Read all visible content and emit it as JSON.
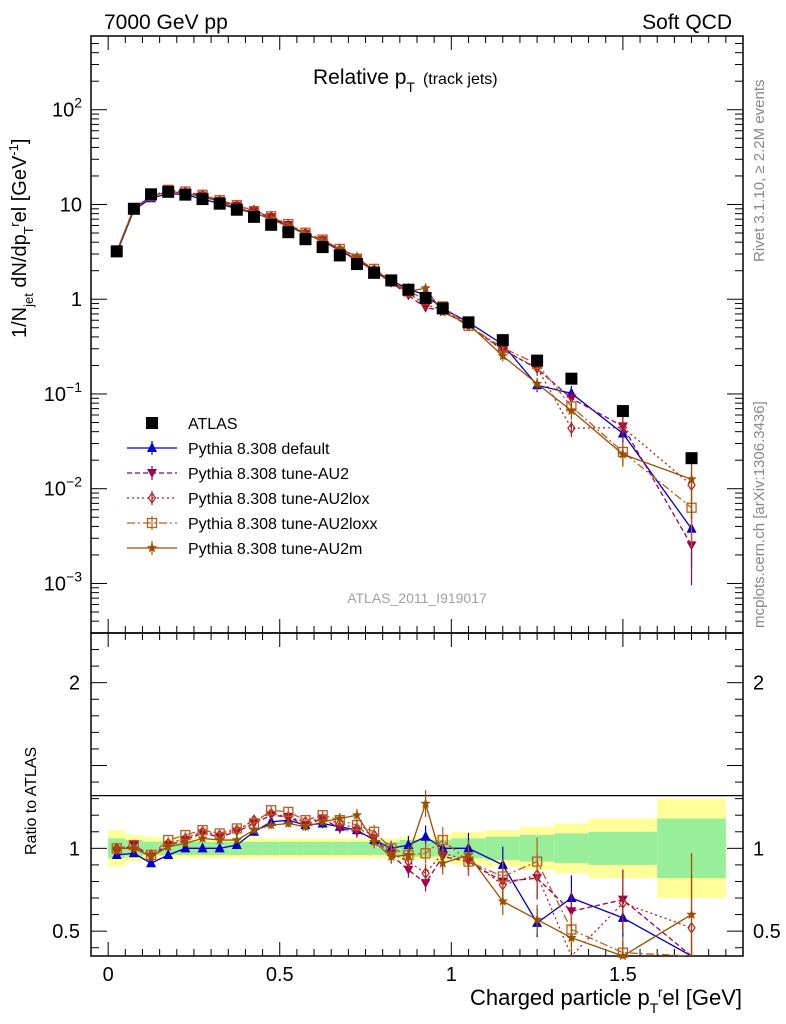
{
  "header": {
    "left": "7000 GeV pp",
    "right": "Soft QCD"
  },
  "side_text": {
    "rivet": "Rivet 3.1.10, ≥ 2.2M events",
    "mcplots": "mcplots.cern.ch [arXiv:1306.3436]"
  },
  "chart_data": {
    "type": "scatter",
    "title": "Relative p",
    "title_sub": "T",
    "title_suffix": "(track jets)",
    "watermark": "ATLAS_2011_I919017",
    "ylabel_main": "1/N_jet dN/dp_T^rel [GeV^-1]",
    "ylabel_ratio": "Ratio to ATLAS",
    "xlabel": "Charged particle p_T^rel [GeV]",
    "xlabel_text": "Charged particle p",
    "xlabel_suffix": "el [GeV]",
    "xlim": [
      -0.05,
      1.85
    ],
    "ylim_main": [
      0.0003,
      600
    ],
    "ylim_ratio": [
      0.35,
      2.3
    ],
    "yscale_main": "log",
    "legend_position": "bottom-left",
    "x_ticks": [
      {
        "v": 0,
        "label": "0"
      },
      {
        "v": 0.5,
        "label": "0.5"
      },
      {
        "v": 1,
        "label": "1"
      },
      {
        "v": 1.5,
        "label": "1.5"
      }
    ],
    "y_ticks_ratio": [
      {
        "v": 0.5,
        "label": "0.5"
      },
      {
        "v": 1,
        "label": "1"
      },
      {
        "v": 2,
        "label": "2"
      }
    ],
    "y_ticks_main": [
      {
        "v": 0.001,
        "base": "10",
        "exp": "−3"
      },
      {
        "v": 0.01,
        "base": "10",
        "exp": "−2"
      },
      {
        "v": 0.1,
        "base": "10",
        "exp": "−1"
      },
      {
        "v": 1,
        "base": "1",
        "exp": ""
      },
      {
        "v": 10,
        "base": "10",
        "exp": ""
      },
      {
        "v": 100,
        "base": "10",
        "exp": "2"
      }
    ],
    "x": [
      0.025,
      0.075,
      0.125,
      0.175,
      0.225,
      0.275,
      0.325,
      0.375,
      0.425,
      0.475,
      0.525,
      0.575,
      0.625,
      0.675,
      0.725,
      0.775,
      0.825,
      0.875,
      0.925,
      0.975,
      1.05,
      1.15,
      1.25,
      1.35,
      1.5,
      1.7
    ],
    "data": {
      "name": "ATLAS",
      "values": [
        3.2,
        9.0,
        12.8,
        13.6,
        12.7,
        11.4,
        10.2,
        8.8,
        7.4,
        6.1,
        5.1,
        4.3,
        3.55,
        2.9,
        2.35,
        1.9,
        1.58,
        1.26,
        1.03,
        0.8,
        0.57,
        0.37,
        0.225,
        0.145,
        0.066,
        0.021
      ]
    },
    "mc_series": [
      {
        "name": "Pythia 8.308 default",
        "color": "#0000cc",
        "marker": "tri-up",
        "dash": "",
        "ratio": [
          0.96,
          0.97,
          0.91,
          0.96,
          1.0,
          1.0,
          1.0,
          1.02,
          1.1,
          1.16,
          1.17,
          1.14,
          1.15,
          1.13,
          1.11,
          1.05,
          1.0,
          1.02,
          1.07,
          1.0,
          1.0,
          0.9,
          0.55,
          0.7,
          0.58,
          0.18
        ]
      },
      {
        "name": "Pythia 8.308 tune-AU2",
        "color": "#a0004f",
        "marker": "tri-down",
        "dash": "5,3",
        "ratio": [
          0.98,
          1.02,
          0.95,
          1.02,
          1.05,
          1.09,
          1.07,
          1.1,
          1.15,
          1.2,
          1.19,
          1.14,
          1.18,
          1.12,
          1.1,
          1.06,
          0.96,
          0.87,
          0.79,
          0.95,
          0.92,
          0.8,
          0.82,
          0.62,
          0.69,
          0.12
        ]
      },
      {
        "name": "Pythia 8.308 tune-AU2lox",
        "color": "#b02020",
        "marker": "diamond",
        "dash": "2,3",
        "ratio": [
          1.0,
          1.0,
          0.96,
          1.03,
          1.06,
          1.1,
          1.08,
          1.11,
          1.17,
          1.21,
          1.19,
          1.16,
          1.18,
          1.15,
          1.12,
          1.08,
          0.97,
          0.92,
          0.85,
          0.97,
          0.93,
          0.78,
          0.84,
          0.3,
          0.67,
          0.52
        ]
      },
      {
        "name": "Pythia 8.308 tune-AU2loxx",
        "color": "#c05a20",
        "marker": "square-open",
        "dash": "8,3,2,3",
        "ratio": [
          1.0,
          1.02,
          0.96,
          1.05,
          1.08,
          1.11,
          1.09,
          1.12,
          1.15,
          1.23,
          1.22,
          1.17,
          1.2,
          1.17,
          1.14,
          1.1,
          1.0,
          0.96,
          0.97,
          1.05,
          0.92,
          0.83,
          0.92,
          0.51,
          0.37,
          0.3
        ]
      },
      {
        "name": "Pythia 8.308 tune-AU2m",
        "color": "#9a5000",
        "marker": "star",
        "dash": "",
        "ratio": [
          1.0,
          1.0,
          0.95,
          1.01,
          1.03,
          1.06,
          1.05,
          1.05,
          1.11,
          1.14,
          1.15,
          1.13,
          1.16,
          1.18,
          1.2,
          1.04,
          0.95,
          0.96,
          1.27,
          0.91,
          0.96,
          0.68,
          0.57,
          0.46,
          0.35,
          0.6
        ]
      }
    ],
    "band_edges": [
      0,
      0.05,
      0.1,
      0.15,
      0.2,
      0.25,
      0.3,
      0.35,
      0.4,
      0.45,
      0.5,
      0.55,
      0.6,
      0.65,
      0.7,
      0.75,
      0.8,
      0.85,
      0.9,
      0.95,
      1.0,
      1.1,
      1.2,
      1.3,
      1.4,
      1.6,
      1.8
    ],
    "band_inner": [
      0.06,
      0.05,
      0.04,
      0.04,
      0.04,
      0.04,
      0.04,
      0.04,
      0.04,
      0.04,
      0.04,
      0.04,
      0.04,
      0.04,
      0.04,
      0.04,
      0.04,
      0.05,
      0.05,
      0.05,
      0.06,
      0.07,
      0.08,
      0.09,
      0.1,
      0.18,
      0.35
    ],
    "band_outer": [
      0.11,
      0.08,
      0.07,
      0.06,
      0.06,
      0.06,
      0.06,
      0.06,
      0.06,
      0.06,
      0.06,
      0.06,
      0.06,
      0.06,
      0.06,
      0.06,
      0.06,
      0.07,
      0.07,
      0.08,
      0.1,
      0.11,
      0.13,
      0.15,
      0.18,
      0.3,
      0.58
    ]
  }
}
